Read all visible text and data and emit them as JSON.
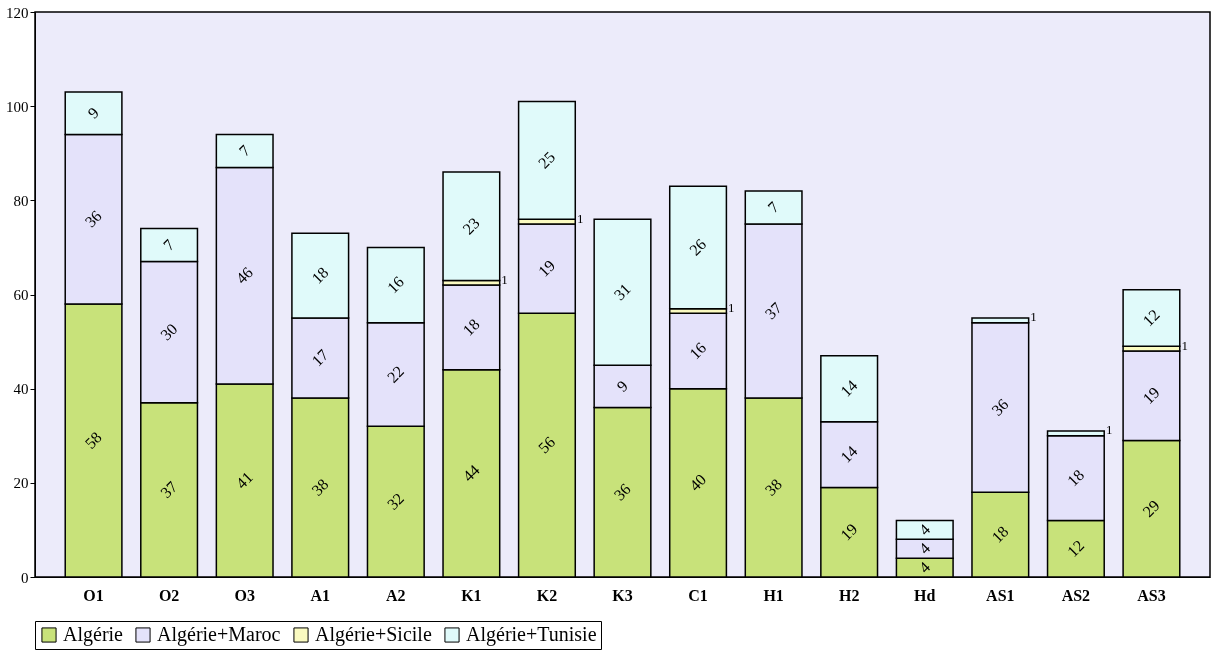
{
  "chart_data": {
    "type": "bar",
    "stacked": true,
    "data_labels": true,
    "legend": "bottom",
    "grid": false,
    "categories": [
      "O1",
      "O2",
      "O3",
      "A1",
      "A2",
      "K1",
      "K2",
      "K3",
      "C1",
      "H1",
      "H2",
      "Hd",
      "AS1",
      "AS2",
      "AS3"
    ],
    "ylim": [
      0,
      120
    ],
    "yticks": [
      0,
      20,
      40,
      60,
      80,
      100,
      120
    ],
    "series": [
      {
        "name": "Algérie",
        "color": "#c8e27a",
        "values": [
          58,
          37,
          41,
          38,
          32,
          44,
          56,
          36,
          40,
          38,
          19,
          4,
          18,
          12,
          29
        ]
      },
      {
        "name": "Algérie+Maroc",
        "color": "#e4e2fa",
        "values": [
          36,
          30,
          46,
          17,
          22,
          18,
          19,
          9,
          16,
          37,
          14,
          4,
          36,
          18,
          19
        ]
      },
      {
        "name": "Algérie+Sicile",
        "color": "#fafac0",
        "values": [
          null,
          null,
          null,
          null,
          null,
          1,
          1,
          null,
          1,
          null,
          null,
          null,
          null,
          null,
          1
        ]
      },
      {
        "name": "Algérie+Tunisie",
        "color": "#e0fafa",
        "values": [
          9,
          7,
          7,
          18,
          16,
          23,
          25,
          31,
          26,
          7,
          14,
          4,
          1,
          1,
          12
        ]
      }
    ]
  }
}
